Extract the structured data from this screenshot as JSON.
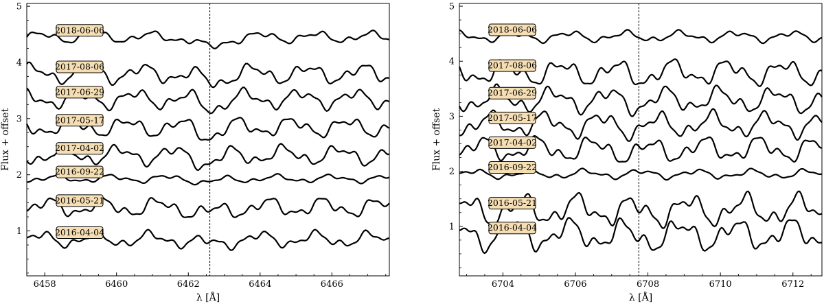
{
  "chart_data": [
    {
      "type": "line",
      "xlabel": "λ [Å]",
      "ylabel": "Flux + offset",
      "xlim": [
        6457.5,
        6467.6
      ],
      "ylim": [
        0.2,
        5.05
      ],
      "xticks": [
        6458,
        6460,
        6462,
        6464,
        6466
      ],
      "yticks": [
        1,
        2,
        3,
        4,
        5
      ],
      "reference_line_x": 6462.6,
      "series": [
        {
          "name": "2018-06-06",
          "baseline": 4.45,
          "amplitude": 0.07,
          "dip": 0.2
        },
        {
          "name": "2017-08-06",
          "baseline": 3.8,
          "amplitude": 0.12,
          "dip": 0.15
        },
        {
          "name": "2017-06-29",
          "baseline": 3.35,
          "amplitude": 0.12,
          "dip": 0.13
        },
        {
          "name": "2017-05-17",
          "baseline": 2.85,
          "amplitude": 0.12,
          "dip": 0.12
        },
        {
          "name": "2017-04-02",
          "baseline": 2.35,
          "amplitude": 0.12,
          "dip": 0.12
        },
        {
          "name": "2016-09-22",
          "baseline": 1.93,
          "amplitude": 0.05,
          "dip": 0.06
        },
        {
          "name": "2016-05-21",
          "baseline": 1.42,
          "amplitude": 0.12,
          "dip": 0.12
        },
        {
          "name": "2016-04-04",
          "baseline": 0.85,
          "amplitude": 0.1,
          "dip": 0.1
        }
      ]
    },
    {
      "type": "line",
      "xlabel": "λ [Å]",
      "ylabel": "Flux + offset",
      "xlim": [
        6702.8,
        6712.8
      ],
      "ylim": [
        0.1,
        5.05
      ],
      "xticks": [
        6704,
        6706,
        6708,
        6710,
        6712
      ],
      "yticks": [
        1,
        2,
        3,
        4,
        5
      ],
      "reference_line_x": 6707.75,
      "series": [
        {
          "name": "2018-06-06",
          "baseline": 4.45,
          "amplitude": 0.07,
          "dip": 0.0
        },
        {
          "name": "2017-08-06",
          "baseline": 3.8,
          "amplitude": 0.16,
          "dip": 0.05
        },
        {
          "name": "2017-06-29",
          "baseline": 3.3,
          "amplitude": 0.16,
          "dip": 0.05
        },
        {
          "name": "2017-05-17",
          "baseline": 2.85,
          "amplitude": 0.16,
          "dip": 0.05
        },
        {
          "name": "2017-04-02",
          "baseline": 2.4,
          "amplitude": 0.16,
          "dip": 0.05
        },
        {
          "name": "2016-09-22",
          "baseline": 1.95,
          "amplitude": 0.06,
          "dip": 0.0
        },
        {
          "name": "2016-05-21",
          "baseline": 1.3,
          "amplitude": 0.2,
          "dip": 0.05
        },
        {
          "name": "2016-04-04",
          "baseline": 0.85,
          "amplitude": 0.2,
          "dip": 0.05
        }
      ]
    }
  ]
}
